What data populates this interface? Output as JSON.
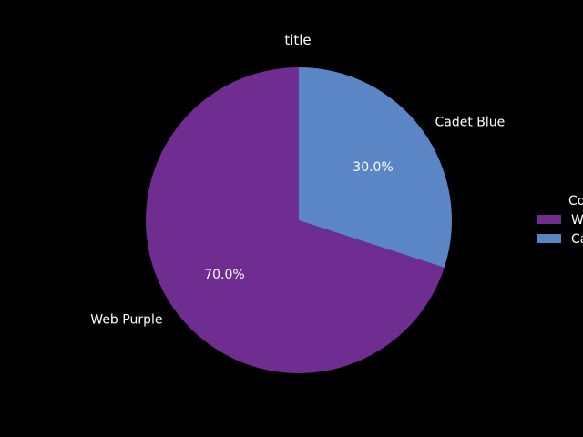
{
  "chart_data": {
    "type": "pie",
    "title": "title",
    "slices": [
      {
        "label": "Web Purple",
        "value": 70.0,
        "pct_label": "70.0%",
        "color": "#6f2c91"
      },
      {
        "label": "Cadet Blue",
        "value": 30.0,
        "pct_label": "30.0%",
        "color": "#5b86c5"
      }
    ],
    "start_angle_deg": 90,
    "direction": "counterclockwise",
    "legend": {
      "title": "Co",
      "position": "right",
      "entries": [
        "W",
        "Ca"
      ]
    }
  }
}
